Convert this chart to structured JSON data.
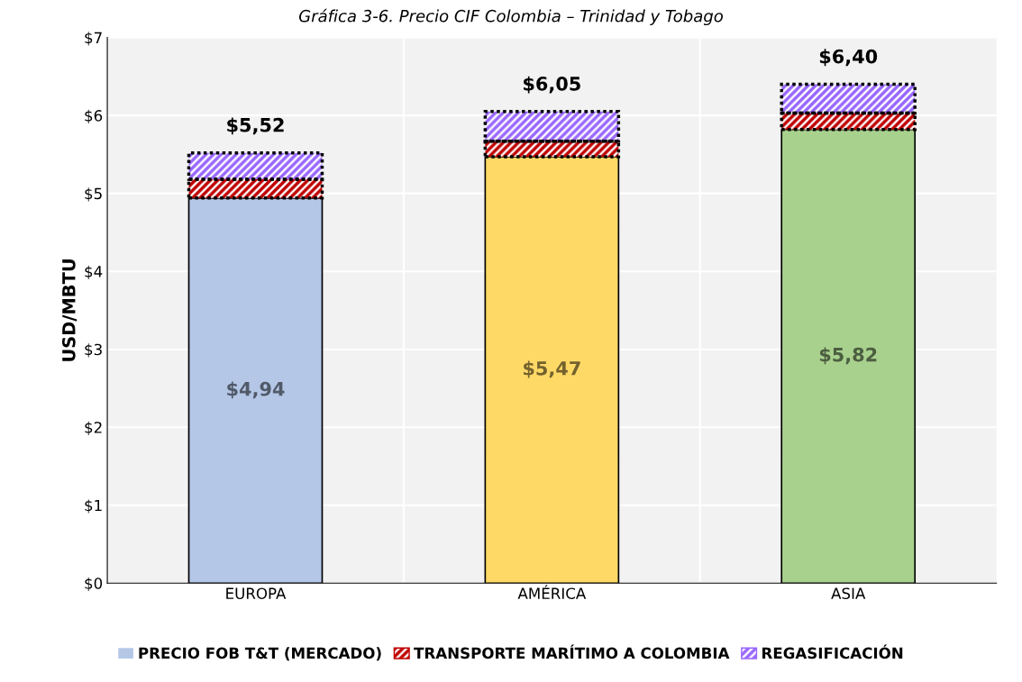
{
  "chart_data": {
    "type": "bar",
    "stacked": true,
    "title": "Gráfica 3-6. Precio CIF Colombia – Trinidad y Tobago",
    "ylabel": "USD/MBTU",
    "categories": [
      "EUROPA",
      "AMÉRICA",
      "ASIA"
    ],
    "series": [
      {
        "name": "PRECIO FOB T&T (MERCADO)",
        "color": "#b4c7e7",
        "colors": [
          "#b4c7e7",
          "#ffd966",
          "#a9d18e"
        ],
        "values": [
          4.94,
          5.47,
          5.82
        ],
        "value_labels": [
          "$4,94",
          "$5,47",
          "$5,82"
        ]
      },
      {
        "name": "TRANSPORTE MARÍTIMO A COLOMBIA",
        "color": "#c00000",
        "values": [
          0.24,
          0.2,
          0.21
        ]
      },
      {
        "name": "REGASIFICACIÓN",
        "color": "#9966ff",
        "values": [
          0.34,
          0.38,
          0.37
        ]
      }
    ],
    "totals": [
      "$5,52",
      "$6,05",
      "$6,40"
    ],
    "ylim": [
      0,
      7
    ],
    "yticks": [
      {
        "value": 0,
        "label": "$0"
      },
      {
        "value": 1,
        "label": "$1"
      },
      {
        "value": 2,
        "label": "$2"
      },
      {
        "value": 3,
        "label": "$3"
      },
      {
        "value": 4,
        "label": "$4"
      },
      {
        "value": 5,
        "label": "$5"
      },
      {
        "value": 6,
        "label": "$6"
      },
      {
        "value": 7,
        "label": "$7"
      }
    ],
    "grid": true,
    "legend": "bottom"
  }
}
